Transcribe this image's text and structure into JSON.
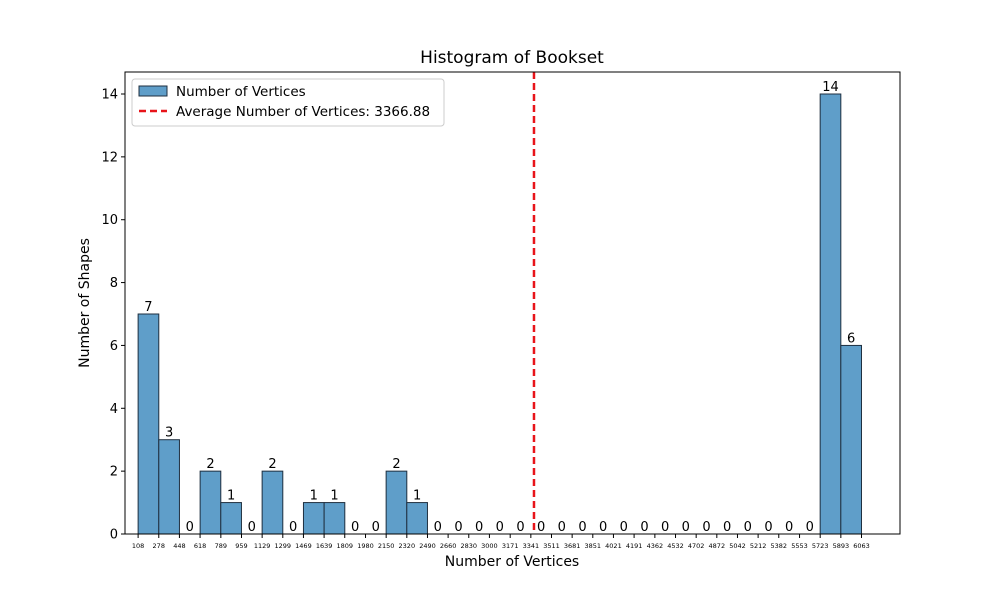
{
  "chart_data": {
    "type": "bar",
    "title": "Histogram of Bookset",
    "xlabel": "Number of Vertices",
    "ylabel": "Number of Shapes",
    "ylim": [
      0,
      14.7
    ],
    "y_ticks": [
      0,
      2,
      4,
      6,
      8,
      10,
      12,
      14
    ],
    "bin_edges": [
      108,
      278,
      448,
      618,
      789,
      959,
      1129,
      1299,
      1469,
      1639,
      1809,
      1980,
      2150,
      2320,
      2490,
      2660,
      2830,
      3000,
      3171,
      3341,
      3511,
      3681,
      3851,
      4021,
      4191,
      4362,
      4532,
      4702,
      4872,
      5042,
      5212,
      5382,
      5553,
      5723,
      5893,
      6063
    ],
    "values": [
      7,
      3,
      0,
      2,
      1,
      0,
      2,
      0,
      1,
      1,
      0,
      0,
      2,
      1,
      0,
      0,
      0,
      0,
      0,
      0,
      0,
      0,
      0,
      0,
      0,
      0,
      0,
      0,
      0,
      0,
      0,
      0,
      0,
      14,
      6
    ],
    "x_range": [
      0,
      6380
    ],
    "bar_color": "#5f9ec9",
    "bar_edge_color": "#1f2f3f",
    "average": {
      "value": 3366.88,
      "label": "Average Number of Vertices: 3366.88",
      "color": "#e8141a",
      "style": "dashed"
    },
    "legend": {
      "placement": "top-left",
      "entries": [
        "Number of Vertices",
        "Average Number of Vertices: 3366.88"
      ]
    },
    "grid": false
  }
}
